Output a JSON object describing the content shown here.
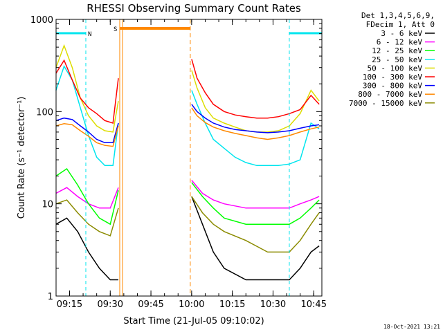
{
  "chart_data": {
    "type": "line",
    "title": "RHESSI Observing Summary Count Rates",
    "xlabel": "Start Time (21-Jul-05 09:10:02)",
    "ylabel": "Count Rate (s⁻¹ detector⁻¹)",
    "y_scale": "log",
    "ylim": [
      1,
      1000
    ],
    "xlim": [
      "09:10:02",
      "10:48:00"
    ],
    "x_ticks": [
      "09:15",
      "09:30",
      "09:45",
      "10:00",
      "10:15",
      "10:30",
      "10:45"
    ],
    "y_ticks": [
      "1",
      "10",
      "100",
      "1000"
    ],
    "grid": false,
    "legend_position": "right",
    "legend_header": [
      "Det 1,3,4,5,6,9,",
      "FDecim 1, Att 0"
    ],
    "timestamp": "18-Oct-2021 13:21",
    "annotations": [
      {
        "label": "N",
        "color": "#00e5ee",
        "type": "night",
        "intervals": [
          [
            "09:10:02",
            "09:21:00"
          ],
          [
            "10:36:00",
            "10:48:00"
          ]
        ]
      },
      {
        "label": "S",
        "color": "#ff8800",
        "type": "saa",
        "interval": [
          "09:33:30",
          "09:59:30"
        ]
      }
    ],
    "data_gap": [
      "09:33:30",
      "09:59:30"
    ],
    "series": [
      {
        "name": "3 - 6 keV",
        "color": "#000000",
        "x": [
          "09:10",
          "09:14",
          "09:18",
          "09:22",
          "09:26",
          "09:30",
          "09:33",
          "10:00",
          "10:04",
          "10:08",
          "10:12",
          "10:20",
          "10:28",
          "10:36",
          "10:40",
          "10:44",
          "10:47"
        ],
        "values": [
          6,
          7,
          5,
          3,
          2,
          1.5,
          1.5,
          12,
          6,
          3,
          2,
          1.5,
          1.5,
          1.5,
          2,
          3,
          3.5
        ]
      },
      {
        "name": "6 - 12 keV",
        "color": "#ff00ff",
        "x": [
          "09:10",
          "09:14",
          "09:18",
          "09:22",
          "09:26",
          "09:30",
          "09:33",
          "10:00",
          "10:04",
          "10:08",
          "10:12",
          "10:20",
          "10:28",
          "10:36",
          "10:40",
          "10:44",
          "10:47"
        ],
        "values": [
          13,
          15,
          12,
          10,
          9,
          9,
          15,
          18,
          13,
          11,
          10,
          9,
          9,
          9,
          10,
          11,
          12
        ]
      },
      {
        "name": "12 - 25 keV",
        "color": "#00ff00",
        "x": [
          "09:10",
          "09:14",
          "09:18",
          "09:22",
          "09:26",
          "09:30",
          "09:33",
          "10:00",
          "10:04",
          "10:08",
          "10:12",
          "10:20",
          "10:28",
          "10:36",
          "10:40",
          "10:44",
          "10:47"
        ],
        "values": [
          20,
          24,
          16,
          10,
          7,
          6,
          14,
          17,
          12,
          9,
          7,
          6,
          6,
          6,
          7,
          9,
          11
        ]
      },
      {
        "name": "25 - 50 keV",
        "color": "#00e5ee",
        "x": [
          "09:10",
          "09:13",
          "09:16",
          "09:19",
          "09:22",
          "09:25",
          "09:28",
          "09:31",
          "09:33",
          "10:00",
          "10:02",
          "10:05",
          "10:08",
          "10:12",
          "10:16",
          "10:20",
          "10:24",
          "10:28",
          "10:32",
          "10:36",
          "10:40",
          "10:44",
          "10:47"
        ],
        "values": [
          170,
          310,
          220,
          110,
          55,
          32,
          26,
          26,
          75,
          170,
          120,
          75,
          50,
          40,
          32,
          28,
          26,
          26,
          26,
          27,
          30,
          75,
          65
        ]
      },
      {
        "name": "50 - 100 keV",
        "color": "#dddd00",
        "x": [
          "09:10",
          "09:13",
          "09:16",
          "09:19",
          "09:22",
          "09:25",
          "09:28",
          "09:31",
          "09:33",
          "10:00",
          "10:02",
          "10:05",
          "10:08",
          "10:12",
          "10:16",
          "10:20",
          "10:24",
          "10:28",
          "10:32",
          "10:36",
          "10:40",
          "10:44",
          "10:47"
        ],
        "values": [
          300,
          520,
          300,
          140,
          90,
          70,
          62,
          60,
          130,
          280,
          180,
          110,
          85,
          75,
          68,
          62,
          60,
          60,
          62,
          70,
          95,
          170,
          130
        ]
      },
      {
        "name": "100 - 300 keV",
        "color": "#ff0000",
        "x": [
          "09:10",
          "09:13",
          "09:16",
          "09:19",
          "09:22",
          "09:25",
          "09:28",
          "09:31",
          "09:33",
          "10:00",
          "10:02",
          "10:05",
          "10:08",
          "10:12",
          "10:16",
          "10:20",
          "10:24",
          "10:28",
          "10:32",
          "10:36",
          "10:40",
          "10:44",
          "10:47"
        ],
        "values": [
          260,
          360,
          220,
          140,
          110,
          95,
          80,
          75,
          230,
          370,
          230,
          160,
          120,
          100,
          92,
          88,
          85,
          85,
          88,
          95,
          105,
          150,
          120
        ]
      },
      {
        "name": "300 - 800 keV",
        "color": "#0000ff",
        "x": [
          "09:10",
          "09:13",
          "09:16",
          "09:19",
          "09:22",
          "09:25",
          "09:28",
          "09:31",
          "09:33",
          "10:00",
          "10:02",
          "10:05",
          "10:08",
          "10:12",
          "10:16",
          "10:20",
          "10:24",
          "10:28",
          "10:32",
          "10:36",
          "10:40",
          "10:44",
          "10:47"
        ],
        "values": [
          80,
          85,
          82,
          70,
          60,
          50,
          46,
          46,
          75,
          120,
          100,
          85,
          75,
          68,
          64,
          62,
          60,
          59,
          60,
          62,
          66,
          70,
          72
        ]
      },
      {
        "name": "800 - 7000 keV",
        "color": "#ff8800",
        "x": [
          "09:10",
          "09:13",
          "09:16",
          "09:19",
          "09:22",
          "09:25",
          "09:28",
          "09:31",
          "09:33",
          "10:00",
          "10:02",
          "10:05",
          "10:08",
          "10:12",
          "10:16",
          "10:20",
          "10:24",
          "10:28",
          "10:32",
          "10:36",
          "10:40",
          "10:44",
          "10:47"
        ],
        "values": [
          70,
          74,
          72,
          62,
          54,
          46,
          43,
          42,
          70,
          110,
          90,
          76,
          68,
          62,
          58,
          55,
          52,
          50,
          52,
          55,
          60,
          65,
          68
        ]
      },
      {
        "name": "7000 - 15000 keV",
        "color": "#8b8b00",
        "x": [
          "09:10",
          "09:14",
          "09:18",
          "09:22",
          "09:26",
          "09:30",
          "09:33",
          "10:00",
          "10:04",
          "10:08",
          "10:12",
          "10:20",
          "10:28",
          "10:36",
          "10:40",
          "10:44",
          "10:47"
        ],
        "values": [
          10,
          11,
          8,
          6,
          5,
          4.5,
          9,
          12,
          8,
          6,
          5,
          4,
          3,
          3,
          4,
          6,
          8
        ]
      }
    ]
  }
}
